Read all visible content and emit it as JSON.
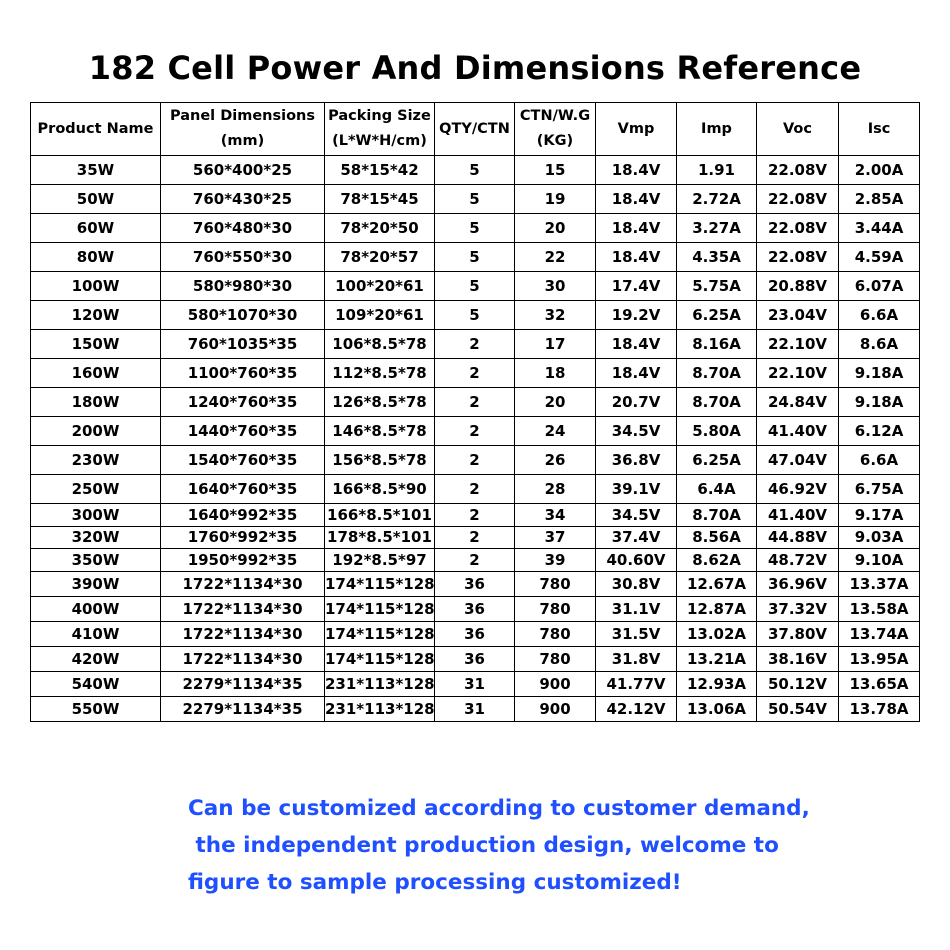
{
  "title": "182 Cell Power And Dimensions Reference",
  "table": {
    "headers": [
      [
        "Product Name"
      ],
      [
        "Panel Dimensions",
        "(mm)"
      ],
      [
        "Packing Size",
        "(L*W*H/cm)"
      ],
      [
        "QTY/CTN"
      ],
      [
        "CTN/W.G",
        "(KG)"
      ],
      [
        "Vmp"
      ],
      [
        "Imp"
      ],
      [
        "Voc"
      ],
      [
        "Isc"
      ]
    ],
    "rows": [
      [
        "35W",
        "560*400*25",
        "58*15*42",
        "5",
        "15",
        "18.4V",
        "1.91",
        "22.08V",
        "2.00A"
      ],
      [
        "50W",
        "760*430*25",
        "78*15*45",
        "5",
        "19",
        "18.4V",
        "2.72A",
        "22.08V",
        "2.85A"
      ],
      [
        "60W",
        "760*480*30",
        "78*20*50",
        "5",
        "20",
        "18.4V",
        "3.27A",
        "22.08V",
        "3.44A"
      ],
      [
        "80W",
        "760*550*30",
        "78*20*57",
        "5",
        "22",
        "18.4V",
        "4.35A",
        "22.08V",
        "4.59A"
      ],
      [
        "100W",
        "580*980*30",
        "100*20*61",
        "5",
        "30",
        "17.4V",
        "5.75A",
        "20.88V",
        "6.07A"
      ],
      [
        "120W",
        "580*1070*30",
        "109*20*61",
        "5",
        "32",
        "19.2V",
        "6.25A",
        "23.04V",
        "6.6A"
      ],
      [
        "150W",
        "760*1035*35",
        "106*8.5*78",
        "2",
        "17",
        "18.4V",
        "8.16A",
        "22.10V",
        "8.6A"
      ],
      [
        "160W",
        "1100*760*35",
        "112*8.5*78",
        "2",
        "18",
        "18.4V",
        "8.70A",
        "22.10V",
        "9.18A"
      ],
      [
        "180W",
        "1240*760*35",
        "126*8.5*78",
        "2",
        "20",
        "20.7V",
        "8.70A",
        "24.84V",
        "9.18A"
      ],
      [
        "200W",
        "1440*760*35",
        "146*8.5*78",
        "2",
        "24",
        "34.5V",
        "5.80A",
        "41.40V",
        "6.12A"
      ],
      [
        "230W",
        "1540*760*35",
        "156*8.5*78",
        "2",
        "26",
        "36.8V",
        "6.25A",
        "47.04V",
        "6.6A"
      ],
      [
        "250W",
        "1640*760*35",
        "166*8.5*90",
        "2",
        "28",
        "39.1V",
        "6.4A",
        "46.92V",
        "6.75A"
      ],
      [
        "300W",
        "1640*992*35",
        "166*8.5*101",
        "2",
        "34",
        "34.5V",
        "8.70A",
        "41.40V",
        "9.17A"
      ],
      [
        "320W",
        "1760*992*35",
        "178*8.5*101",
        "2",
        "37",
        "37.4V",
        "8.56A",
        "44.88V",
        "9.03A"
      ],
      [
        "350W",
        "1950*992*35",
        "192*8.5*97",
        "2",
        "39",
        "40.60V",
        "8.62A",
        "48.72V",
        "9.10A"
      ],
      [
        "390W",
        "1722*1134*30",
        "174*115*128",
        "36",
        "780",
        "30.8V",
        "12.67A",
        "36.96V",
        "13.37A"
      ],
      [
        "400W",
        "1722*1134*30",
        "174*115*128",
        "36",
        "780",
        "31.1V",
        "12.87A",
        "37.32V",
        "13.58A"
      ],
      [
        "410W",
        "1722*1134*30",
        "174*115*128",
        "36",
        "780",
        "31.5V",
        "13.02A",
        "37.80V",
        "13.74A"
      ],
      [
        "420W",
        "1722*1134*30",
        "174*115*128",
        "36",
        "780",
        "31.8V",
        "13.21A",
        "38.16V",
        "13.95A"
      ],
      [
        "540W",
        "2279*1134*35",
        "231*113*128",
        "31",
        "900",
        "41.77V",
        "12.93A",
        "50.12V",
        "13.65A"
      ],
      [
        "550W",
        "2279*1134*35",
        "231*113*128",
        "31",
        "900",
        "42.12V",
        "13.06A",
        "50.54V",
        "13.78A"
      ]
    ]
  },
  "footer": {
    "lines": [
      "Can be customized according to customer demand,",
      " the independent production design, welcome to",
      "figure to sample processing customized!"
    ],
    "color": "#1f4fff"
  }
}
